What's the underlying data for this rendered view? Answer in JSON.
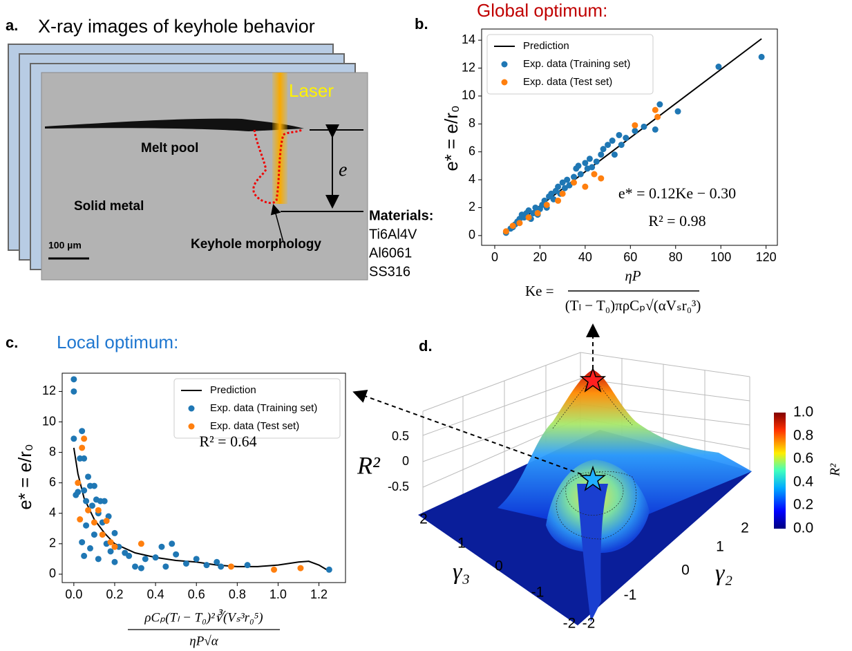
{
  "panel_a": {
    "label": "a.",
    "title": "X-ray images of keyhole behavior",
    "laser": "Laser",
    "melt_pool": "Melt pool",
    "solid_metal": "Solid metal",
    "keyhole": "Keyhole morphology",
    "scale": "100 µm",
    "depth": "e",
    "materials_title": "Materials:",
    "materials": [
      "Ti6Al4V",
      "Al6061",
      "SS316"
    ]
  },
  "panel_b": {
    "label": "b.",
    "heading": "Global optimum:"
  },
  "panel_c": {
    "label": "c.",
    "heading": "Local optimum:"
  },
  "equation": {
    "lhs": "Ke =",
    "numerator": "ηP",
    "denominator": "(Tₗ − T₀)πρCₚ√(αVₛr₀³)"
  },
  "panel_d": {
    "label": "d.",
    "zlabel": "R²",
    "zticks": [
      "0.5",
      "0",
      "-0.5"
    ],
    "g3label": "γ₃",
    "g3ticks": [
      "2",
      "1",
      "0",
      "-1",
      "-2"
    ],
    "g2label": "γ₂",
    "g2ticks": [
      "-2",
      "-1",
      "0",
      "1",
      "2"
    ],
    "colorbar_label": "R²",
    "colorbar_ticks": [
      "1.0",
      "0.8",
      "0.6",
      "0.4",
      "0.2",
      "0.0"
    ]
  },
  "chart_data": [
    {
      "type": "scatter",
      "ylabel": "e* = e/r₀",
      "legend": "upper left",
      "annotations": [
        "e* = 0.12Ke − 0.30",
        "R² = 0.98"
      ],
      "xlim": [
        -5.8,
        125
      ],
      "ylim": [
        -0.7,
        14.8
      ],
      "xticks": [
        0,
        20,
        40,
        60,
        80,
        100,
        120
      ],
      "yticks": [
        0,
        2,
        4,
        6,
        8,
        10,
        12,
        14
      ],
      "series": [
        {
          "name": "Prediction",
          "style": "line",
          "color": "#000000",
          "x": [
            5,
            118
          ],
          "values": [
            0.3,
            14.1
          ]
        },
        {
          "name": "Exp. data (Training set)",
          "style": "points",
          "color": "#1f77b4",
          "x": [
            5,
            7,
            8,
            9,
            10,
            11,
            12,
            13,
            14,
            15,
            16,
            17,
            18,
            19,
            20,
            21,
            22,
            23,
            24,
            25,
            26,
            27,
            28,
            29,
            30,
            31,
            32,
            33,
            35,
            36,
            37,
            38,
            40,
            41,
            42,
            43,
            45,
            47,
            48,
            50,
            52,
            53,
            55,
            56,
            58,
            62,
            66,
            71,
            73,
            81,
            99,
            118
          ],
          "values": [
            0.2,
            0.5,
            0.6,
            0.8,
            1.0,
            1.2,
            1.5,
            1.3,
            1.6,
            1.8,
            1.2,
            1.6,
            2.0,
            1.5,
            1.9,
            2.2,
            2.5,
            2.0,
            2.8,
            3.0,
            2.6,
            3.2,
            3.5,
            3.0,
            3.8,
            3.4,
            4.0,
            3.6,
            4.2,
            4.8,
            5.0,
            4.4,
            5.2,
            4.8,
            5.5,
            4.9,
            5.3,
            5.8,
            6.2,
            6.5,
            6.8,
            5.8,
            7.2,
            6.5,
            7.0,
            7.5,
            7.8,
            7.6,
            9.4,
            8.9,
            12.1,
            12.8
          ]
        },
        {
          "name": "Exp. data (Test set)",
          "style": "points",
          "color": "#ff7f0e",
          "x": [
            5,
            8,
            11,
            15,
            19,
            23,
            28,
            30,
            35,
            40,
            44,
            47,
            62,
            71,
            72
          ],
          "values": [
            0.3,
            0.7,
            0.9,
            1.3,
            1.6,
            2.2,
            2.5,
            3.0,
            3.8,
            3.5,
            4.4,
            4.1,
            7.9,
            9.0,
            8.5
          ]
        }
      ]
    },
    {
      "type": "scatter",
      "ylabel": "e* = e/r₀",
      "xlabel_numerator": "ρCₚ(Tₗ − T₀)²∛(Vₛ³r₀⁵)",
      "xlabel_denominator": "ηP√α",
      "legend": "upper right",
      "annotations": [
        "R² = 0.64"
      ],
      "xlim": [
        -0.057,
        1.33
      ],
      "ylim": [
        -0.55,
        13.2
      ],
      "xticks": [
        {
          "value": 0,
          "label": "0.0"
        },
        {
          "value": 0.2,
          "label": "0.2"
        },
        {
          "value": 0.4,
          "label": "0.4"
        },
        {
          "value": 0.6,
          "label": "0.6"
        },
        {
          "value": 0.8,
          "label": "0.8"
        },
        {
          "value": 1,
          "label": "1.0"
        },
        {
          "value": 1.2,
          "label": "1.2"
        }
      ],
      "yticks": [
        0,
        2,
        4,
        6,
        8,
        10,
        12
      ],
      "series": [
        {
          "name": "Prediction",
          "style": "line",
          "color": "#000000",
          "x": [
            0.0,
            0.02,
            0.05,
            0.1,
            0.15,
            0.2,
            0.3,
            0.4,
            0.5,
            0.6,
            0.7,
            0.8,
            0.9,
            1.0,
            1.1,
            1.15,
            1.2,
            1.25
          ],
          "values": [
            8.3,
            6.6,
            5.0,
            3.6,
            2.7,
            2.0,
            1.4,
            1.1,
            0.9,
            0.8,
            0.6,
            0.5,
            0.5,
            0.6,
            0.8,
            0.85,
            0.6,
            0.2
          ]
        },
        {
          "name": "Exp. data (Training set)",
          "style": "points",
          "color": "#1f77b4",
          "x": [
            0.0,
            0.0,
            0.0,
            0.01,
            0.02,
            0.03,
            0.04,
            0.05,
            0.05,
            0.06,
            0.06,
            0.07,
            0.08,
            0.09,
            0.1,
            0.1,
            0.11,
            0.12,
            0.13,
            0.14,
            0.15,
            0.16,
            0.17,
            0.18,
            0.2,
            0.22,
            0.25,
            0.27,
            0.3,
            0.33,
            0.35,
            0.4,
            0.43,
            0.45,
            0.48,
            0.5,
            0.55,
            0.6,
            0.65,
            0.7,
            0.72,
            0.85,
            1.25,
            0.04,
            0.08,
            0.12,
            0.05,
            0.2
          ],
          "values": [
            12.8,
            12.0,
            8.9,
            5.2,
            5.4,
            7.6,
            9.4,
            7.6,
            5.5,
            4.8,
            3.2,
            6.4,
            5.8,
            4.5,
            5.8,
            2.6,
            4.9,
            4.0,
            4.8,
            3.4,
            4.8,
            2.0,
            3.8,
            1.5,
            2.7,
            1.8,
            1.4,
            1.2,
            0.5,
            0.4,
            1.0,
            1.1,
            1.8,
            0.5,
            2.0,
            1.3,
            0.7,
            1.0,
            0.6,
            0.8,
            0.5,
            0.6,
            0.3,
            2.1,
            1.7,
            1.0,
            1.2,
            0.8
          ]
        },
        {
          "name": "Exp. data (Test set)",
          "style": "points",
          "color": "#ff7f0e",
          "x": [
            0.03,
            0.04,
            0.05,
            0.07,
            0.1,
            0.12,
            0.14,
            0.16,
            0.18,
            0.2,
            0.33,
            0.77,
            0.98,
            1.11,
            0.02
          ],
          "values": [
            3.6,
            8.3,
            8.9,
            4.2,
            3.4,
            4.2,
            2.6,
            3.5,
            2.1,
            1.8,
            2.0,
            0.5,
            0.3,
            0.4,
            6.0
          ]
        }
      ]
    }
  ]
}
